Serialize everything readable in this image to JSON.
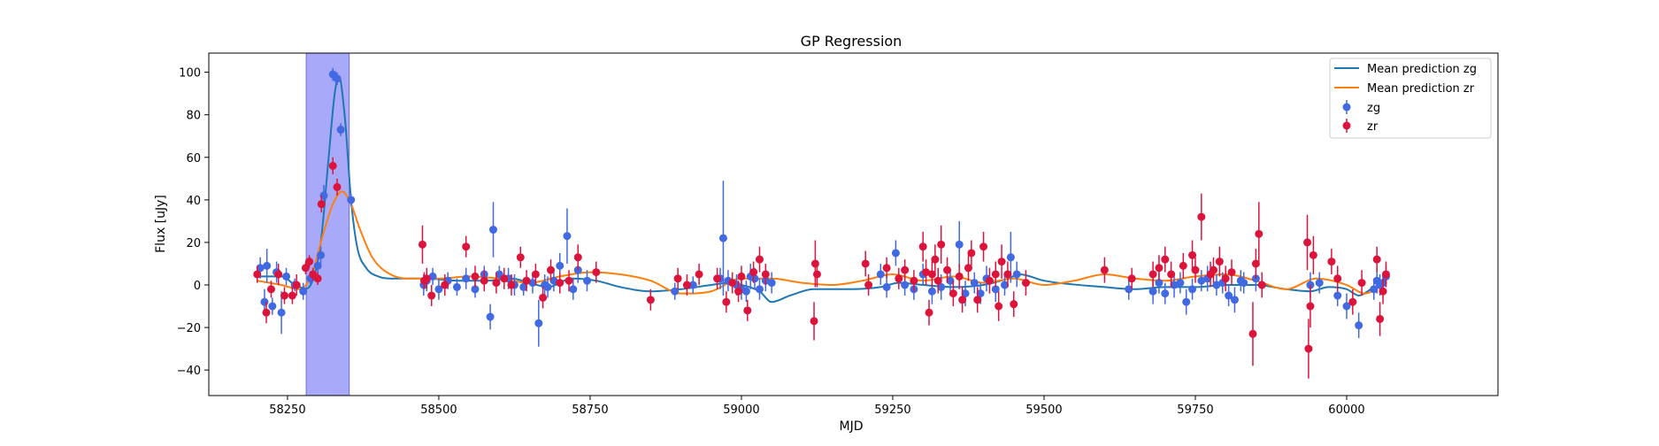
{
  "chart_data": {
    "type": "scatter",
    "title": "GP Regression",
    "xlabel": "MJD",
    "ylabel": "Flux [uJy]",
    "xlim": [
      58120,
      60250
    ],
    "ylim": [
      -52,
      109
    ],
    "xticks": [
      58250,
      58500,
      58750,
      59000,
      59250,
      59500,
      59750,
      60000
    ],
    "yticks": [
      -40,
      -20,
      0,
      20,
      40,
      60,
      80,
      100
    ],
    "grid": false,
    "legend_position": "top-right",
    "highlight_span": {
      "x_start": 58281,
      "x_end": 58352,
      "color": "#a9a9f9"
    },
    "colors": {
      "zg_line": "#1f77b4",
      "zr_line": "#ff7f0e",
      "zg_points": "#4169e1",
      "zr_points": "#dc143c"
    },
    "legend": [
      "Mean prediction zg",
      "Mean prediction zr",
      "zg",
      "zr"
    ],
    "lines": [
      {
        "name": "Mean prediction zg",
        "x": [
          58200,
          58240,
          58270,
          58290,
          58305,
          58318,
          58328,
          58335,
          58345,
          58355,
          58365,
          58380,
          58400,
          58430,
          58480,
          58530,
          58580,
          58620,
          58650,
          58680,
          58720,
          58760,
          58800,
          58850,
          58900,
          58950,
          58980,
          59000,
          59030,
          59050,
          59080,
          59120,
          59180,
          59230,
          59260,
          59300,
          59350,
          59400,
          59440,
          59460,
          59500,
          59600,
          59650,
          59700,
          59750,
          59800,
          59850,
          59900,
          59940,
          59970,
          60000,
          60020,
          60040,
          60065
        ],
        "y": [
          4,
          4,
          -1,
          1,
          20,
          60,
          90,
          98,
          78,
          40,
          18,
          8,
          4,
          3,
          3,
          2,
          2,
          3,
          1,
          -1,
          3,
          2,
          -1,
          -3,
          -2,
          0,
          1,
          0,
          -3,
          -8,
          -5,
          -2,
          -2,
          -1,
          1,
          0,
          -1,
          0,
          3,
          5,
          2,
          -1,
          -2,
          -1,
          -1,
          0,
          0,
          -2,
          -3,
          -1,
          -2,
          -5,
          -2,
          2
        ]
      },
      {
        "name": "Mean prediction zr",
        "x": [
          58200,
          58240,
          58270,
          58290,
          58310,
          58325,
          58340,
          58355,
          58370,
          58390,
          58420,
          58460,
          58500,
          58550,
          58600,
          58650,
          58700,
          58750,
          58800,
          58850,
          58900,
          58950,
          59000,
          59050,
          59100,
          59150,
          59200,
          59250,
          59300,
          59350,
          59400,
          59450,
          59500,
          59550,
          59600,
          59650,
          59700,
          59750,
          59800,
          59850,
          59900,
          59950,
          60000,
          60030,
          60065
        ],
        "y": [
          2,
          0,
          -2,
          5,
          25,
          38,
          44,
          38,
          26,
          13,
          5,
          3,
          3,
          4,
          3,
          1,
          4,
          6,
          5,
          2,
          -4,
          -3,
          3,
          3,
          1,
          0,
          2,
          5,
          2,
          4,
          1,
          3,
          0,
          2,
          5,
          3,
          2,
          4,
          5,
          2,
          -2,
          3,
          0,
          -4,
          1
        ]
      }
    ],
    "series": [
      {
        "name": "zg",
        "x": [
          58205,
          58212,
          58216,
          58225,
          58232,
          58240,
          58248,
          58262,
          58276,
          58288,
          58300,
          58305,
          58310,
          58325,
          58332,
          58338,
          58355,
          58475,
          58480,
          58490,
          58500,
          58515,
          58530,
          58545,
          58560,
          58575,
          58585,
          58590,
          58600,
          58615,
          58625,
          58640,
          58655,
          58665,
          58675,
          58680,
          58690,
          58700,
          58712,
          58722,
          58730,
          58745,
          58890,
          58920,
          58965,
          58970,
          58978,
          58992,
          59000,
          59008,
          59015,
          59022,
          59030,
          59040,
          59050,
          59230,
          59240,
          59255,
          59270,
          59285,
          59300,
          59315,
          59330,
          59345,
          59360,
          59370,
          59385,
          59395,
          59405,
          59420,
          59435,
          59445,
          59455,
          59640,
          59680,
          59690,
          59700,
          59715,
          59725,
          59735,
          59745,
          59760,
          59770,
          59785,
          59795,
          59805,
          59815,
          59825,
          59830,
          59850,
          59940,
          59955,
          59985,
          60000,
          60020,
          60045,
          60050,
          60055,
          60060,
          60065
        ],
        "y": [
          8,
          -8,
          9,
          -10,
          6,
          -13,
          4,
          0,
          -3,
          3,
          9,
          14,
          42,
          99,
          97,
          73,
          40,
          0,
          2,
          4,
          -2,
          2,
          -1,
          3,
          -2,
          5,
          -15,
          26,
          5,
          3,
          0,
          -1,
          1,
          -18,
          0,
          -1,
          2,
          9,
          23,
          -2,
          7,
          2,
          -3,
          0,
          3,
          22,
          2,
          0,
          -2,
          -3,
          4,
          3,
          -2,
          2,
          1,
          5,
          -1,
          15,
          0,
          -2,
          5,
          -3,
          -1,
          2,
          19,
          -4,
          1,
          -4,
          3,
          -2,
          0,
          13,
          5,
          -2,
          -3,
          1,
          -4,
          0,
          1,
          -8,
          -2,
          2,
          3,
          0,
          1,
          -5,
          -7,
          2,
          1,
          3,
          0,
          1,
          -5,
          -10,
          -19,
          -2,
          2,
          0,
          1,
          4
        ],
        "err": [
          5,
          6,
          8,
          4,
          5,
          10,
          4,
          3,
          4,
          3,
          4,
          4,
          5,
          3,
          3,
          3,
          3,
          5,
          5,
          4,
          5,
          4,
          4,
          5,
          4,
          4,
          6,
          13,
          4,
          5,
          5,
          4,
          5,
          11,
          5,
          5,
          5,
          6,
          13,
          5,
          6,
          5,
          4,
          4,
          5,
          27,
          5,
          5,
          5,
          5,
          6,
          5,
          5,
          5,
          5,
          5,
          5,
          6,
          5,
          5,
          5,
          6,
          6,
          5,
          11,
          6,
          5,
          5,
          6,
          6,
          5,
          12,
          6,
          5,
          6,
          5,
          5,
          6,
          5,
          6,
          5,
          5,
          6,
          5,
          5,
          5,
          6,
          5,
          5,
          6,
          6,
          5,
          5,
          6,
          6,
          5,
          6,
          5,
          5,
          5
        ]
      },
      {
        "name": "zr",
        "x": [
          58200,
          58215,
          58223,
          58235,
          58245,
          58258,
          58265,
          58280,
          58286,
          58292,
          58300,
          58306,
          58325,
          58332,
          58473,
          58476,
          58480,
          58488,
          58510,
          58545,
          58560,
          58575,
          58595,
          58608,
          58620,
          58635,
          58645,
          58660,
          58672,
          58685,
          58700,
          58715,
          58730,
          58760,
          58850,
          58895,
          58910,
          58930,
          58960,
          58975,
          58985,
          58995,
          59000,
          59010,
          59020,
          59030,
          59040,
          59120,
          59122,
          59125,
          59205,
          59210,
          59240,
          59260,
          59270,
          59285,
          59300,
          59305,
          59310,
          59315,
          59320,
          59325,
          59330,
          59340,
          59350,
          59360,
          59365,
          59375,
          59380,
          59390,
          59400,
          59410,
          59420,
          59425,
          59430,
          59440,
          59450,
          59470,
          59600,
          59645,
          59680,
          59690,
          59700,
          59710,
          59730,
          59745,
          59750,
          59760,
          59775,
          59780,
          59790,
          59800,
          59810,
          59845,
          59850,
          59855,
          59860,
          59935,
          59937,
          59940,
          59945,
          59975,
          59985,
          60010,
          60025,
          60050,
          60055,
          60060,
          60065
        ],
        "y": [
          5,
          -13,
          -2,
          5,
          -5,
          -5,
          0,
          8,
          11,
          5,
          3,
          38,
          56,
          46,
          19,
          2,
          3,
          -5,
          0,
          18,
          4,
          2,
          1,
          3,
          0,
          13,
          2,
          5,
          -6,
          7,
          1,
          2,
          13,
          6,
          -7,
          3,
          0,
          5,
          3,
          -8,
          1,
          -3,
          4,
          -12,
          6,
          12,
          5,
          -17,
          10,
          5,
          10,
          0,
          8,
          3,
          7,
          2,
          18,
          6,
          -13,
          5,
          12,
          2,
          19,
          7,
          -4,
          4,
          -7,
          8,
          15,
          -7,
          18,
          2,
          5,
          -10,
          11,
          5,
          -9,
          1,
          7,
          3,
          5,
          8,
          12,
          5,
          9,
          14,
          7,
          32,
          5,
          7,
          11,
          3,
          6,
          -23,
          10,
          24,
          0,
          20,
          -30,
          -10,
          14,
          11,
          3,
          -8,
          1,
          12,
          -16,
          -3,
          5
        ],
        "err": [
          4,
          5,
          4,
          5,
          4,
          4,
          5,
          3,
          3,
          3,
          3,
          4,
          4,
          4,
          9,
          4,
          5,
          5,
          5,
          5,
          5,
          5,
          5,
          5,
          5,
          5,
          5,
          5,
          5,
          5,
          5,
          5,
          6,
          5,
          5,
          5,
          5,
          5,
          5,
          5,
          5,
          5,
          5,
          5,
          5,
          6,
          5,
          9,
          11,
          6,
          6,
          5,
          5,
          5,
          5,
          5,
          7,
          6,
          6,
          6,
          7,
          6,
          9,
          6,
          6,
          6,
          6,
          6,
          6,
          6,
          7,
          6,
          6,
          7,
          8,
          6,
          6,
          6,
          6,
          5,
          6,
          6,
          6,
          6,
          6,
          7,
          6,
          11,
          6,
          6,
          7,
          6,
          6,
          15,
          7,
          15,
          6,
          13,
          14,
          10,
          9,
          6,
          6,
          6,
          6,
          6,
          8,
          6,
          6
        ]
      }
    ]
  }
}
